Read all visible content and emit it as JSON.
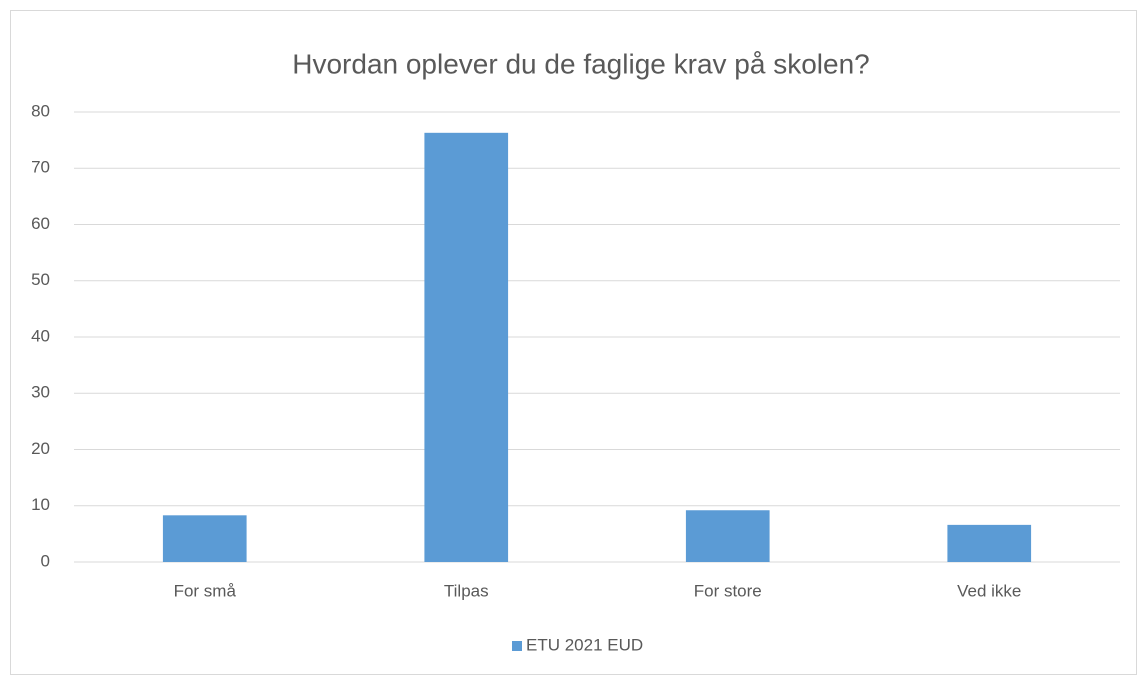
{
  "chart_data": {
    "type": "bar",
    "title": "Hvordan oplever du de faglige krav på skolen?",
    "categories": [
      "For små",
      "Tilpas",
      "For store",
      "Ved ikke"
    ],
    "series": [
      {
        "name": "ETU 2021 EUD",
        "color": "#5b9bd5",
        "values": [
          8.3,
          76.3,
          9.2,
          6.6
        ]
      }
    ],
    "ylim": [
      0,
      80
    ],
    "yticks": [
      0,
      10,
      20,
      30,
      40,
      50,
      60,
      70,
      80
    ],
    "grid": true,
    "legend": "bottom"
  }
}
